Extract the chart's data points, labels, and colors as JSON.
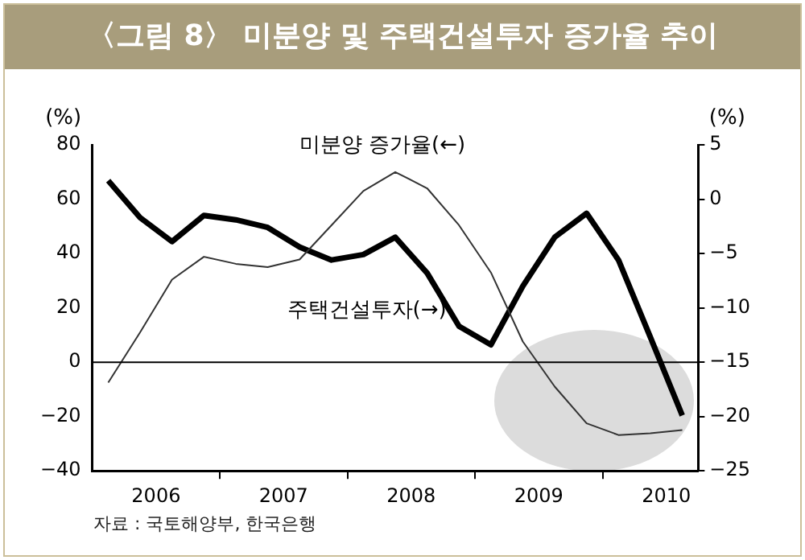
{
  "chart_data": {
    "type": "line",
    "title": "〈그림 8〉 미분양 및 주택건설투자 증가율 추이",
    "x": [
      2006.125,
      2006.375,
      2006.625,
      2006.875,
      2007.125,
      2007.375,
      2007.625,
      2007.875,
      2008.125,
      2008.375,
      2008.625,
      2008.875,
      2009.125,
      2009.375,
      2009.625,
      2009.875,
      2010.125,
      2010.375,
      2010.625
    ],
    "xlim": [
      2006,
      2010.75
    ],
    "xticks": [
      {
        "value": 2006.5,
        "label": "2006"
      },
      {
        "value": 2007,
        "label": null
      },
      {
        "value": 2007.5,
        "label": "2007"
      },
      {
        "value": 2008,
        "label": null
      },
      {
        "value": 2008.5,
        "label": "2008"
      },
      {
        "value": 2009,
        "label": null
      },
      {
        "value": 2009.5,
        "label": "2009"
      },
      {
        "value": 2010,
        "label": null
      },
      {
        "value": 2010.5,
        "label": "2010"
      }
    ],
    "series": [
      {
        "name": "미분양 증가율(←)",
        "color": "#333333",
        "values": [
          -7.5,
          11,
          30.4,
          38.8,
          36.2,
          35,
          37.8,
          50.4,
          63,
          70,
          64,
          50.4,
          33,
          7.6,
          -9,
          -22.5,
          -26.8,
          -26.2,
          -25
        ]
      },
      {
        "name": "주택건설투자(→)",
        "color": "#000000",
        "axis": "y2",
        "values": [
          1.7,
          -1.7,
          -3.9,
          -1.5,
          -1.9,
          -2.6,
          -4.4,
          -5.6,
          -5.1,
          -3.5,
          -6.8,
          -11.7,
          -13.4,
          -8,
          -3.5,
          -1.3,
          -5.6,
          -12.7,
          -19.9
        ]
      }
    ],
    "ylabel": "(%)",
    "y2label": "(%)",
    "ylim": [
      -40,
      80
    ],
    "yticks": [
      -40,
      -20,
      0,
      20,
      40,
      60,
      80
    ],
    "y2lim": [
      -25,
      5
    ],
    "y2ticks": [
      -25,
      -20,
      -15,
      -10,
      -5,
      0,
      5
    ],
    "ref_lines": [
      {
        "axis": "y",
        "value": 0,
        "color": "#000000"
      }
    ],
    "grid": false,
    "legend": false,
    "marker": "none",
    "line_style": "solid",
    "annotations": [
      "자료 : 국토해양부, 한국은행"
    ]
  }
}
